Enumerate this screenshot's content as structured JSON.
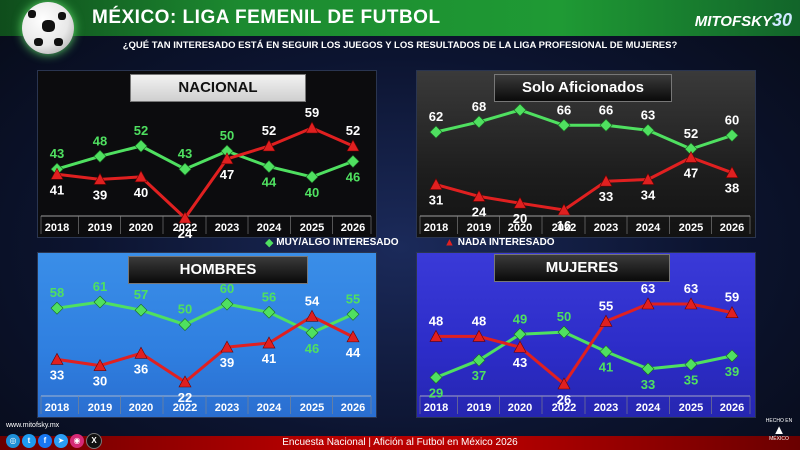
{
  "header": {
    "title": "MÉXICO: LIGA FEMENIL DE FUTBOL",
    "brand": "MITOFSKY",
    "brand_suffix": "30",
    "question": "¿QUÉ TAN INTERESADO ESTÁ EN SEGUIR LOS JUEGOS Y LOS RESULTADOS DE LA LIGA PROFESIONAL DE MUJERES?"
  },
  "legend": {
    "green_label": "MUY/ALGO INTERESADO",
    "red_label": "NADA INTERESADO",
    "green_color": "#4fe060",
    "red_color": "#e02020"
  },
  "chart_data": [
    {
      "type": "line",
      "title": "NACIONAL",
      "categories": [
        "2018",
        "2019",
        "2020",
        "2022",
        "2023",
        "2024",
        "2025",
        "2026"
      ],
      "series": [
        {
          "name": "MUY/ALGO INTERESADO",
          "values": [
            43,
            48,
            52,
            43,
            50,
            44,
            40,
            46
          ]
        },
        {
          "name": "NADA INTERESADO",
          "values": [
            41,
            39,
            40,
            24,
            47,
            52,
            59,
            52
          ]
        }
      ]
    },
    {
      "type": "line",
      "title": "Solo Aficionados",
      "categories": [
        "2018",
        "2019",
        "2020",
        "2022",
        "2023",
        "2024",
        "2025",
        "2026"
      ],
      "series": [
        {
          "name": "MUY/ALGO INTERESADO",
          "values": [
            62,
            68,
            75,
            66,
            66,
            63,
            52,
            60
          ]
        },
        {
          "name": "NADA INTERESADO",
          "values": [
            31,
            24,
            20,
            16,
            33,
            34,
            47,
            38
          ]
        }
      ]
    },
    {
      "type": "line",
      "title": "HOMBRES",
      "categories": [
        "2018",
        "2019",
        "2020",
        "2022",
        "2023",
        "2024",
        "2025",
        "2026"
      ],
      "series": [
        {
          "name": "MUY/ALGO INTERESADO",
          "values": [
            58,
            61,
            57,
            50,
            60,
            56,
            46,
            55
          ]
        },
        {
          "name": "NADA INTERESADO",
          "values": [
            33,
            30,
            36,
            22,
            39,
            41,
            54,
            44
          ]
        }
      ]
    },
    {
      "type": "line",
      "title": "MUJERES",
      "categories": [
        "2018",
        "2019",
        "2020",
        "2022",
        "2023",
        "2024",
        "2025",
        "2026"
      ],
      "series": [
        {
          "name": "MUY/ALGO INTERESADO",
          "values": [
            29,
            37,
            49,
            50,
            41,
            33,
            35,
            39
          ]
        },
        {
          "name": "NADA INTERESADO",
          "values": [
            48,
            48,
            43,
            26,
            55,
            63,
            63,
            59
          ]
        }
      ]
    }
  ],
  "footer": {
    "text": "Encuesta Nacional | Afición al Futbol en México 2026",
    "website": "www.mitofsky.mx",
    "hecho_top": "HECHO EN",
    "hecho_bottom": "MÉXICO"
  }
}
